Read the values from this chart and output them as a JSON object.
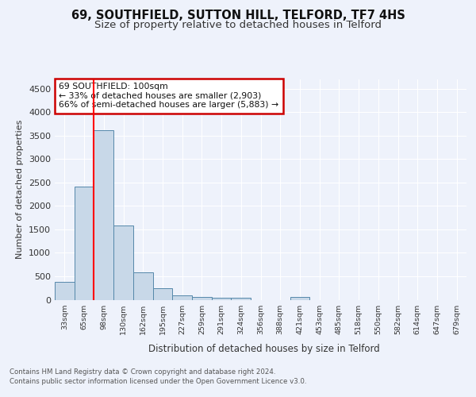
{
  "title": "69, SOUTHFIELD, SUTTON HILL, TELFORD, TF7 4HS",
  "subtitle": "Size of property relative to detached houses in Telford",
  "xlabel": "Distribution of detached houses by size in Telford",
  "ylabel": "Number of detached properties",
  "footnote1": "Contains HM Land Registry data © Crown copyright and database right 2024.",
  "footnote2": "Contains public sector information licensed under the Open Government Licence v3.0.",
  "bar_labels": [
    "33sqm",
    "65sqm",
    "98sqm",
    "130sqm",
    "162sqm",
    "195sqm",
    "227sqm",
    "259sqm",
    "291sqm",
    "324sqm",
    "356sqm",
    "388sqm",
    "421sqm",
    "453sqm",
    "485sqm",
    "518sqm",
    "550sqm",
    "582sqm",
    "614sqm",
    "647sqm",
    "679sqm"
  ],
  "bar_values": [
    380,
    2420,
    3620,
    1580,
    590,
    240,
    100,
    60,
    45,
    40,
    0,
    0,
    55,
    0,
    0,
    0,
    0,
    0,
    0,
    0,
    0
  ],
  "bar_color": "#c8d8e8",
  "bar_edge_color": "#5588aa",
  "red_line_index": 2,
  "annotation_title": "69 SOUTHFIELD: 100sqm",
  "annotation_line1": "← 33% of detached houses are smaller (2,903)",
  "annotation_line2": "66% of semi-detached houses are larger (5,883) →",
  "annotation_box_color": "#cc0000",
  "ylim": [
    0,
    4700
  ],
  "yticks": [
    0,
    500,
    1000,
    1500,
    2000,
    2500,
    3000,
    3500,
    4000,
    4500
  ],
  "background_color": "#eef2fb",
  "grid_color": "#ffffff",
  "title_fontsize": 10.5,
  "subtitle_fontsize": 9.5
}
